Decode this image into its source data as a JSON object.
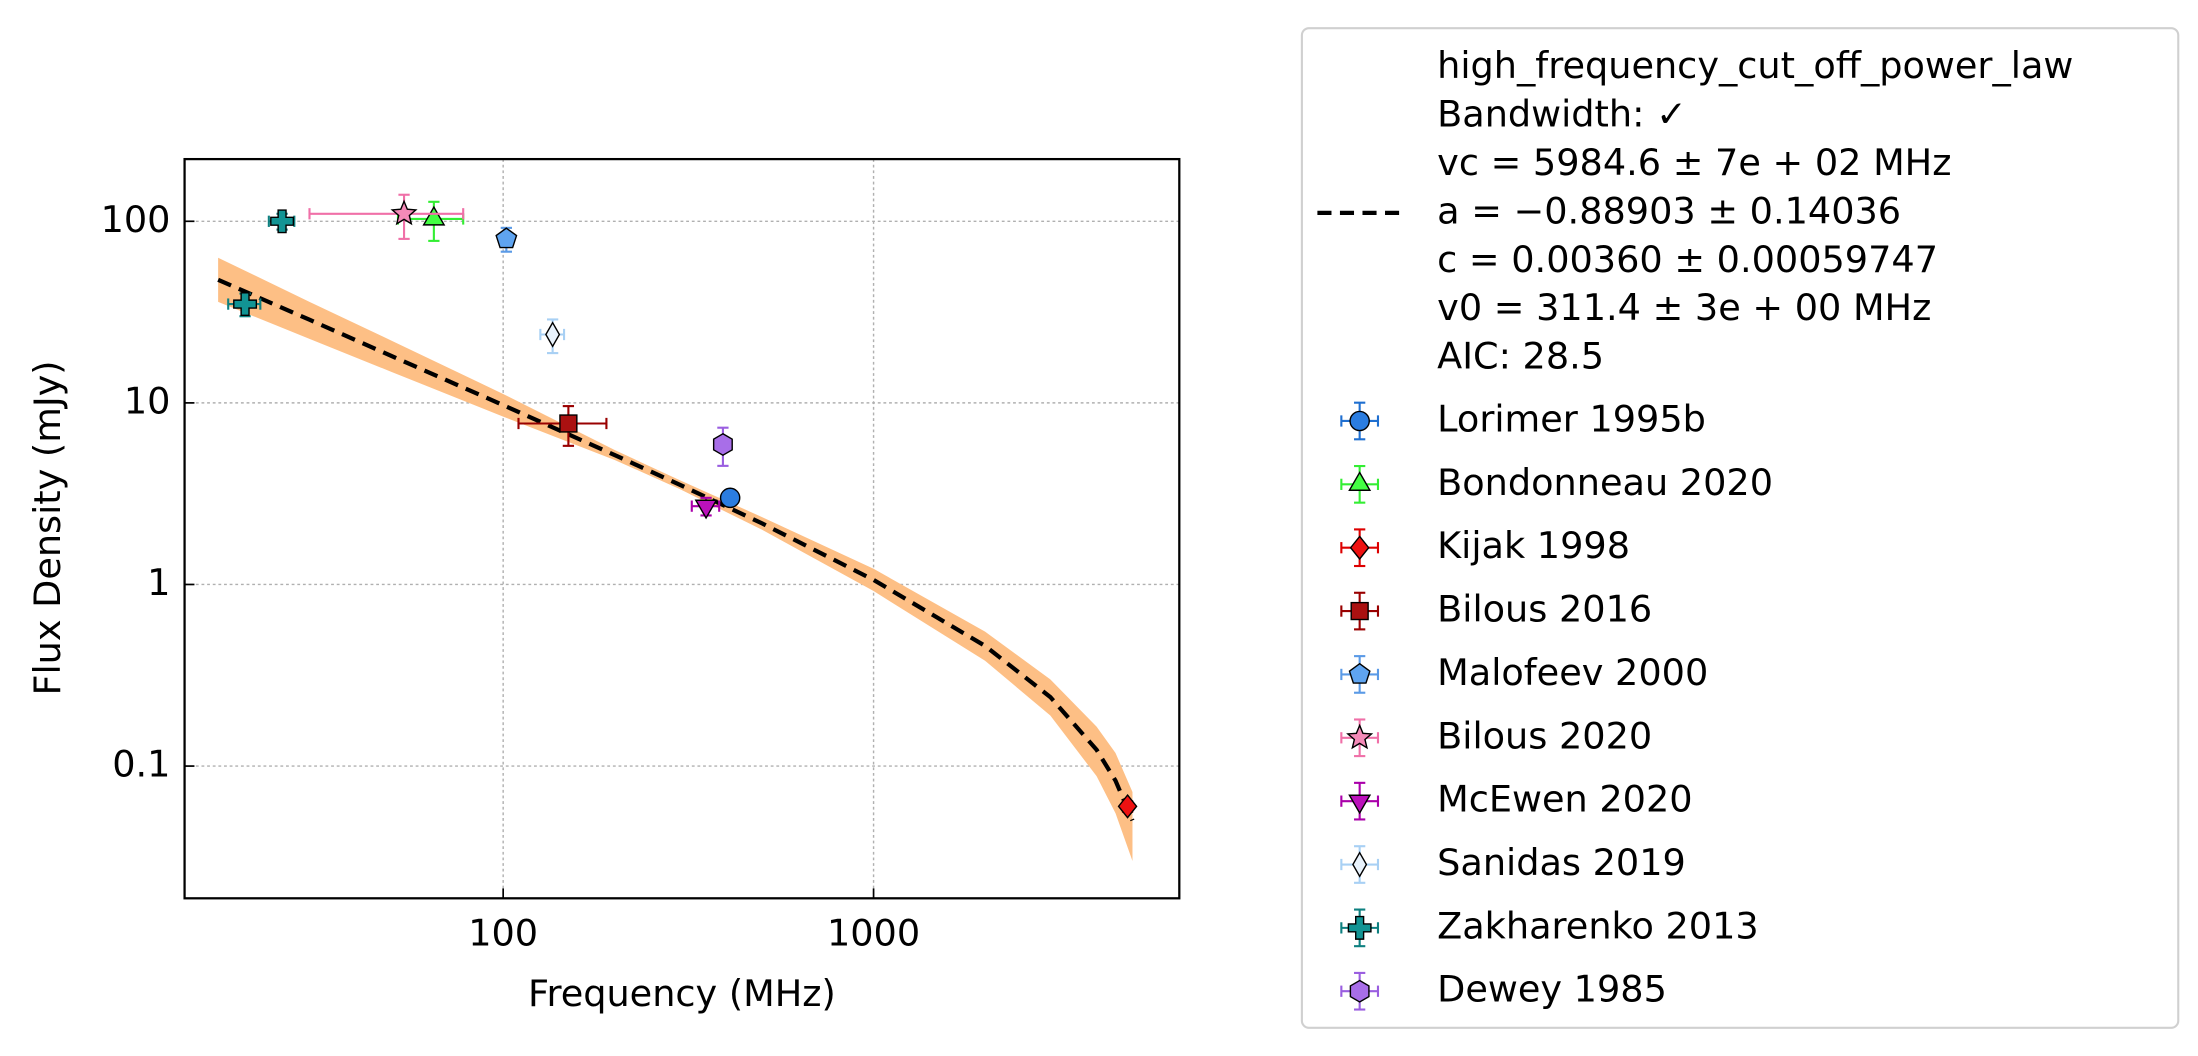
{
  "chart_data": {
    "type": "scatter",
    "xlabel": "Frequency (MHz)",
    "ylabel": "Flux Density (mJy)",
    "xscale": "log",
    "yscale": "log",
    "xlim": [
      13.8,
      6690
    ],
    "ylim": [
      0.0187,
      220
    ],
    "xticks": [
      100,
      1000
    ],
    "yticks": [
      0.1,
      1,
      10,
      100
    ],
    "grid": true,
    "legend": "outside-right",
    "fit": {
      "label": [
        "high_frequency_cut_off_power_law",
        "Bandwidth: ✓",
        "vc = 5984.6 ± 7e + 02 MHz",
        "a = −0.88903 ± 0.14036",
        "c = 0.00360 ± 0.00059747",
        "v0 = 311.4 ± 3e + 00 MHz",
        "AIC: 28.5"
      ],
      "color": "#000000",
      "band_color": "#fdbf85",
      "x": [
        17,
        30,
        50,
        100,
        200,
        300,
        500,
        1000,
        2000,
        3000,
        4000,
        4500,
        5000
      ],
      "y": [
        47.6,
        28.7,
        18.1,
        9.72,
        5.16,
        3.54,
        2.17,
        1.06,
        0.459,
        0.24,
        0.123,
        0.0831,
        0.0502
      ],
      "band_upper": [
        63,
        36,
        22,
        11.2,
        5.5,
        3.75,
        2.35,
        1.22,
        0.55,
        0.3,
        0.165,
        0.118,
        0.072
      ],
      "band_lower": [
        36,
        22.5,
        14.8,
        8.4,
        4.85,
        3.35,
        2.0,
        0.92,
        0.38,
        0.19,
        0.088,
        0.055,
        0.03
      ]
    },
    "series": [
      {
        "name": "Lorimer 1995b",
        "color": "#1f6fd0",
        "fill": "#2b7de0",
        "marker": "circle",
        "x": [
          410
        ],
        "y": [
          3.0
        ],
        "xerr": [
          0
        ],
        "yerr": [
          0.15
        ]
      },
      {
        "name": "Bondonneau 2020",
        "color": "#33ee33",
        "fill": "#44ff44",
        "marker": "triangle-up",
        "x": [
          65
        ],
        "y": [
          103
        ],
        "xerr": [
          13
        ],
        "yerr": [
          25
        ]
      },
      {
        "name": "Kijak 1998",
        "color": "#dd0000",
        "fill": "#ee1111",
        "marker": "diamond",
        "x": [
          4850
        ],
        "y": [
          0.06
        ],
        "xerr": [
          0
        ],
        "yerr": [
          0.004
        ]
      },
      {
        "name": "Bilous 2016",
        "color": "#990000",
        "fill": "#aa1111",
        "marker": "square",
        "x": [
          150
        ],
        "y": [
          7.7
        ],
        "xerr": [
          40
        ],
        "yerr": [
          1.9
        ]
      },
      {
        "name": "Malofeev 2000",
        "color": "#5a9ae6",
        "fill": "#5fa4f0",
        "marker": "pentagon",
        "x": [
          102
        ],
        "y": [
          80
        ],
        "xerr": [
          0
        ],
        "yerr": [
          12
        ]
      },
      {
        "name": "Bilous 2020",
        "color": "#f070a8",
        "fill": "#f48ab8",
        "marker": "star",
        "x": [
          54
        ],
        "y": [
          110
        ],
        "xerr": [
          24
        ],
        "yerr": [
          30
        ]
      },
      {
        "name": "McEwen 2020",
        "color": "#aa00aa",
        "fill": "#bb11bb",
        "marker": "triangle-down",
        "x": [
          353
        ],
        "y": [
          2.7
        ],
        "xerr": [
          30
        ],
        "yerr": [
          0.3
        ]
      },
      {
        "name": "Sanidas 2019",
        "color": "#a8d0f4",
        "fill": "#e8f2fc",
        "marker": "thin-diamond",
        "x": [
          136
        ],
        "y": [
          23.8
        ],
        "xerr": [
          10
        ],
        "yerr": [
          5
        ]
      },
      {
        "name": "Zakharenko 2013",
        "color": "#0e8080",
        "fill": "#129494",
        "marker": "plus",
        "x": [
          25.3,
          20.1
        ],
        "y": [
          100,
          35
        ],
        "xerr": [
          2,
          2
        ],
        "yerr": [
          10,
          5
        ]
      },
      {
        "name": "Dewey 1985",
        "color": "#9a5ee0",
        "fill": "#a86ee8",
        "marker": "hexagon",
        "x": [
          392
        ],
        "y": [
          5.9
        ],
        "xerr": [
          0
        ],
        "yerr": [
          1.4
        ]
      }
    ]
  }
}
